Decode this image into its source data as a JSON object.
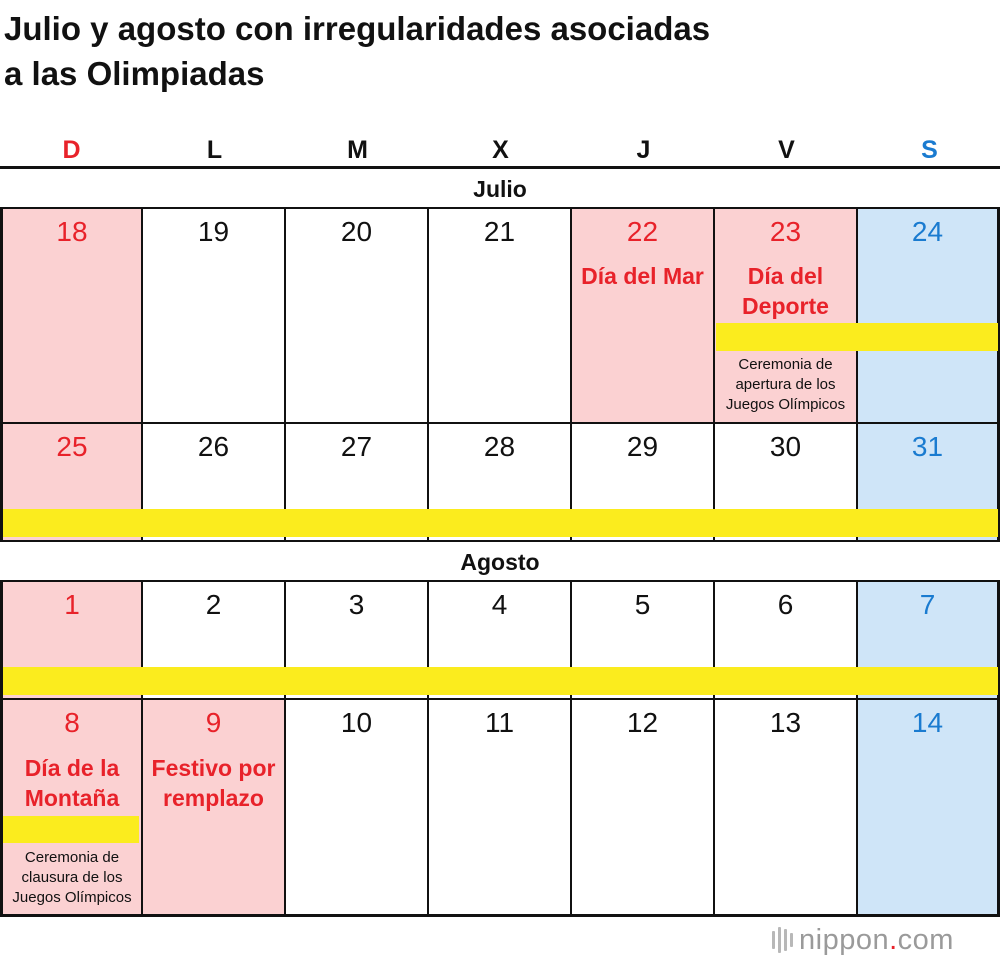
{
  "title": {
    "line1": "Julio y agosto con irregularidades asociadas",
    "line2": "a las Olimpiadas"
  },
  "days_of_week": [
    "D",
    "L",
    "M",
    "X",
    "J",
    "V",
    "S"
  ],
  "colors": {
    "sunday_holiday_bg": "#fbd1d2",
    "saturday_bg": "#cfe5f8",
    "red_text": "#e8222a",
    "blue_text": "#1a7bd0",
    "olympic_bar": "#fbec1e"
  },
  "months": {
    "july": "Julio",
    "august": "Agosto"
  },
  "weeks": [
    [
      "18",
      "19",
      "20",
      "21",
      "22",
      "23",
      "24"
    ],
    [
      "25",
      "26",
      "27",
      "28",
      "29",
      "30",
      "31"
    ],
    [
      "1",
      "2",
      "3",
      "4",
      "5",
      "6",
      "7"
    ],
    [
      "8",
      "9",
      "10",
      "11",
      "12",
      "13",
      "14"
    ]
  ],
  "holidays": {
    "jul22": "Día del Mar",
    "jul23_line1": "Día del",
    "jul23_line2": "Deporte",
    "aug8_line1": "Día de la",
    "aug8_line2": "Montaña",
    "aug9_line1": "Festivo por",
    "aug9_line2": "remplazo"
  },
  "events": {
    "opening_line1": "Ceremonia de",
    "opening_line2": "apertura de los",
    "opening_line3": "Juegos Olímpicos",
    "closing_line1": "Ceremonia de",
    "closing_line2": "clausura de los",
    "closing_line3": "Juegos Olímpicos"
  },
  "logo": {
    "name": "nippon",
    "dot": ".",
    "tld": "com",
    "icon": "nippon-logo-icon"
  }
}
